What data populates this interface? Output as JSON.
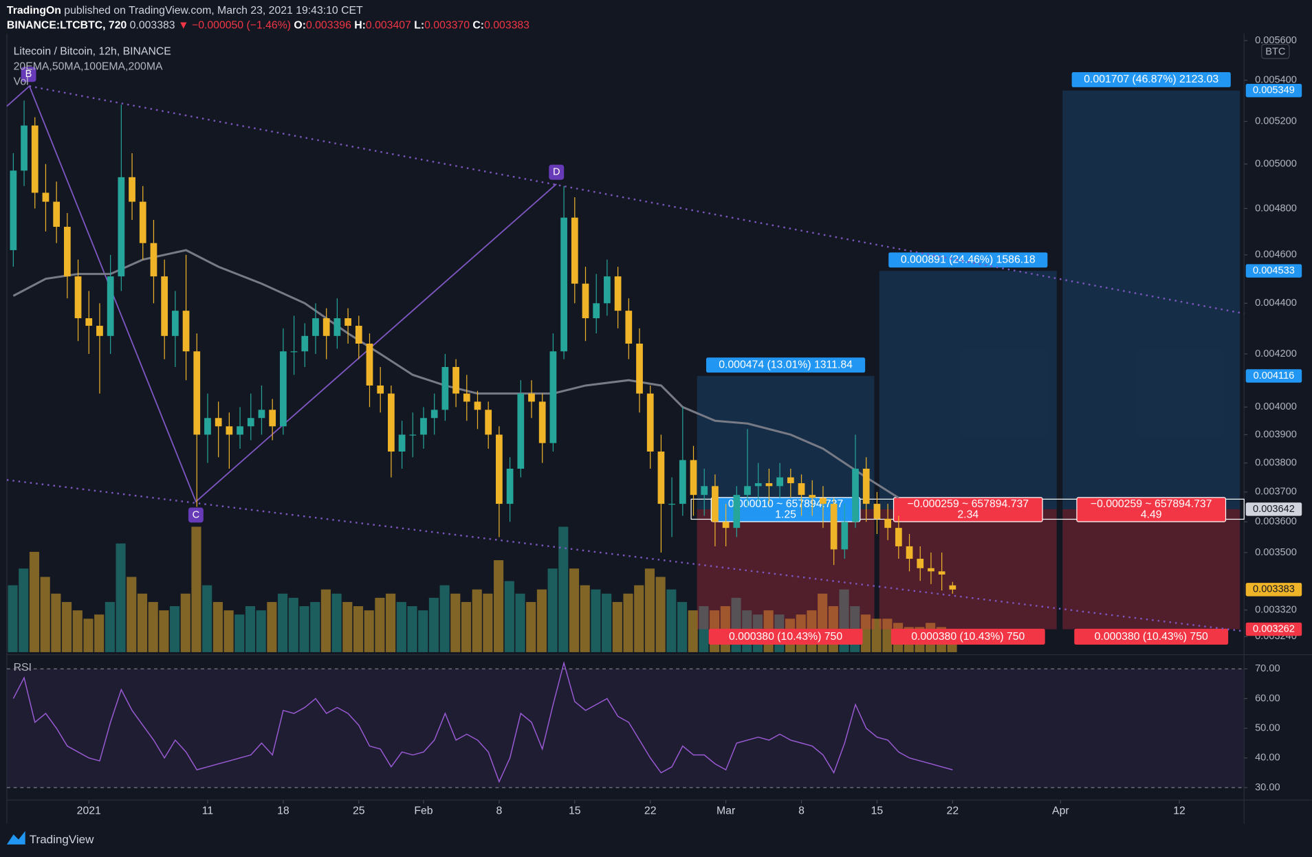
{
  "header": {
    "publisher": "TradingOn",
    "published": "published on TradingView.com, March 23, 2021 19:43:10 CET",
    "symbol": "BINANCE:LTCBTC, 720",
    "last": "0.003383",
    "change": "▼ −0.000050 (−1.46%)",
    "o_label": "O:",
    "open": "0.003396",
    "h_label": "H:",
    "high": "0.003407",
    "l_label": "L:",
    "low": "0.003370",
    "c_label": "C:",
    "close": "0.003383"
  },
  "footer": "TradingView",
  "chart_data": {
    "type": "candlestick",
    "title": "Litecoin / Bitcoin, 12h, BINANCE",
    "indicators_label": "20EMA,50MA,100EMA,200MA",
    "volume_label": "Vol",
    "currency": "BTC",
    "log_scale": true,
    "grid": false,
    "xlim": [
      -7.6,
      107
    ],
    "xticks": [
      {
        "value": 0,
        "label": "2021"
      },
      11,
      18,
      25,
      {
        "value": 31,
        "label": "Feb"
      },
      {
        "value": 38,
        "label": "8"
      },
      {
        "value": 45,
        "label": "15"
      },
      {
        "value": 52,
        "label": "22"
      },
      {
        "value": 59,
        "label": "Mar"
      },
      {
        "value": 66,
        "label": "8"
      },
      {
        "value": 73,
        "label": "15"
      },
      {
        "value": 80,
        "label": "22"
      },
      {
        "value": 90,
        "label": "Apr"
      },
      {
        "value": 101,
        "label": "12"
      }
    ],
    "ylim": [
      0.003194,
      0.005637
    ],
    "yticks": [
      {
        "value": 0.0056,
        "label": "0.005600"
      },
      {
        "value": 0.0054,
        "label": "0.005400"
      },
      {
        "value": 0.0052,
        "label": "0.005200"
      },
      {
        "value": 0.005,
        "label": "0.005000"
      },
      {
        "value": 0.0048,
        "label": "0.004800"
      },
      {
        "value": 0.0046,
        "label": "0.004600"
      },
      {
        "value": 0.0044,
        "label": "0.004400"
      },
      {
        "value": 0.0042,
        "label": "0.004200"
      },
      {
        "value": 0.004,
        "label": "0.004000"
      },
      {
        "value": 0.0039,
        "label": "0.003900"
      },
      {
        "value": 0.0038,
        "label": "0.003800"
      },
      {
        "value": 0.0037,
        "label": "0.003700"
      },
      {
        "value": 0.0036,
        "label": "0.003600"
      },
      {
        "value": 0.0035,
        "label": "0.003500"
      },
      {
        "value": 0.00332,
        "label": "0.003320"
      },
      {
        "value": 0.00324,
        "label": "0.003240"
      }
    ],
    "candles": {
      "up_color": "#26a69a",
      "down_color": "#f0b429",
      "x": [
        -7,
        -6,
        -5,
        -4,
        -3,
        -2,
        -1,
        0,
        1,
        2,
        3,
        4,
        5,
        6,
        7,
        8,
        9,
        10,
        11,
        12,
        13,
        14,
        15,
        16,
        17,
        18,
        19,
        20,
        21,
        22,
        23,
        24,
        25,
        26,
        27,
        28,
        29,
        30,
        31,
        32,
        33,
        34,
        35,
        36,
        37,
        38,
        39,
        40,
        41,
        42,
        43,
        44,
        45,
        46,
        47,
        48,
        49,
        50,
        51,
        52,
        53,
        54,
        55,
        56,
        57,
        58,
        59,
        60,
        61,
        62,
        63,
        64,
        65,
        66,
        67,
        68,
        69,
        70,
        71,
        72,
        73,
        74,
        75,
        76,
        77,
        78,
        79,
        80
      ],
      "ohlc": [
        [
          0.00462,
          0.00505,
          0.00455,
          0.00497
        ],
        [
          0.00497,
          0.0053,
          0.0049,
          0.00518
        ],
        [
          0.00518,
          0.00522,
          0.0048,
          0.00487
        ],
        [
          0.00487,
          0.005,
          0.0047,
          0.00483
        ],
        [
          0.00483,
          0.00492,
          0.00465,
          0.00472
        ],
        [
          0.00472,
          0.00478,
          0.00442,
          0.00451
        ],
        [
          0.00451,
          0.00458,
          0.00425,
          0.00434
        ],
        [
          0.00434,
          0.00445,
          0.0042,
          0.00431
        ],
        [
          0.00431,
          0.0044,
          0.00405,
          0.00427
        ],
        [
          0.00427,
          0.0046,
          0.0042,
          0.00451
        ],
        [
          0.00451,
          0.00528,
          0.00445,
          0.00494
        ],
        [
          0.00494,
          0.00505,
          0.00475,
          0.00483
        ],
        [
          0.00483,
          0.0049,
          0.00458,
          0.00465
        ],
        [
          0.00465,
          0.00475,
          0.0044,
          0.00451
        ],
        [
          0.00451,
          0.00458,
          0.00418,
          0.00427
        ],
        [
          0.00427,
          0.00445,
          0.00415,
          0.00437
        ],
        [
          0.00437,
          0.0046,
          0.0041,
          0.00421
        ],
        [
          0.00421,
          0.00428,
          0.00365,
          0.0039
        ],
        [
          0.0039,
          0.00405,
          0.0038,
          0.00396
        ],
        [
          0.00396,
          0.00402,
          0.00382,
          0.00393
        ],
        [
          0.00393,
          0.00398,
          0.00378,
          0.0039
        ],
        [
          0.0039,
          0.004,
          0.00385,
          0.00393
        ],
        [
          0.00393,
          0.00405,
          0.00388,
          0.00396
        ],
        [
          0.00396,
          0.00408,
          0.0039,
          0.00399
        ],
        [
          0.00399,
          0.00403,
          0.00388,
          0.00393
        ],
        [
          0.00393,
          0.0043,
          0.0039,
          0.00421
        ],
        [
          0.00421,
          0.00435,
          0.00412,
          0.00421
        ],
        [
          0.00421,
          0.00432,
          0.00415,
          0.00427
        ],
        [
          0.00427,
          0.0044,
          0.0042,
          0.00434
        ],
        [
          0.00434,
          0.00438,
          0.00418,
          0.00427
        ],
        [
          0.00427,
          0.00442,
          0.00422,
          0.00434
        ],
        [
          0.00434,
          0.00438,
          0.00424,
          0.00431
        ],
        [
          0.00431,
          0.00435,
          0.00418,
          0.00424
        ],
        [
          0.00424,
          0.00428,
          0.004,
          0.00408
        ],
        [
          0.00408,
          0.00415,
          0.00398,
          0.00405
        ],
        [
          0.00405,
          0.00408,
          0.00375,
          0.00384
        ],
        [
          0.00384,
          0.00395,
          0.00378,
          0.0039
        ],
        [
          0.0039,
          0.00398,
          0.00382,
          0.0039
        ],
        [
          0.0039,
          0.004,
          0.00385,
          0.00396
        ],
        [
          0.00396,
          0.00405,
          0.0039,
          0.00399
        ],
        [
          0.00399,
          0.0042,
          0.00395,
          0.00415
        ],
        [
          0.00415,
          0.00418,
          0.004,
          0.00405
        ],
        [
          0.00405,
          0.00412,
          0.00395,
          0.00402
        ],
        [
          0.00402,
          0.00406,
          0.00392,
          0.00399
        ],
        [
          0.00399,
          0.00402,
          0.00385,
          0.0039
        ],
        [
          0.0039,
          0.00393,
          0.00355,
          0.00366
        ],
        [
          0.00366,
          0.00382,
          0.0036,
          0.00378
        ],
        [
          0.00378,
          0.0041,
          0.00375,
          0.00405
        ],
        [
          0.00405,
          0.0041,
          0.00396,
          0.00402
        ],
        [
          0.00402,
          0.00405,
          0.0038,
          0.00387
        ],
        [
          0.00387,
          0.00428,
          0.00384,
          0.00421
        ],
        [
          0.00421,
          0.0049,
          0.00418,
          0.00476
        ],
        [
          0.00476,
          0.00485,
          0.0044,
          0.00448
        ],
        [
          0.00448,
          0.00455,
          0.00425,
          0.00434
        ],
        [
          0.00434,
          0.00452,
          0.00428,
          0.0044
        ],
        [
          0.0044,
          0.00458,
          0.00435,
          0.00451
        ],
        [
          0.00451,
          0.00455,
          0.0043,
          0.00437
        ],
        [
          0.00437,
          0.00442,
          0.00418,
          0.00424
        ],
        [
          0.00424,
          0.0043,
          0.00398,
          0.00405
        ],
        [
          0.00405,
          0.00408,
          0.00378,
          0.00384
        ],
        [
          0.00384,
          0.0039,
          0.0035,
          0.00366
        ],
        [
          0.00366,
          0.00375,
          0.00355,
          0.00366
        ],
        [
          0.00366,
          0.004,
          0.00362,
          0.00381
        ],
        [
          0.00381,
          0.00386,
          0.00362,
          0.00369
        ],
        [
          0.00369,
          0.00378,
          0.00362,
          0.00372
        ],
        [
          0.00372,
          0.00376,
          0.00352,
          0.0036
        ],
        [
          0.0036,
          0.00366,
          0.00352,
          0.00358
        ],
        [
          0.00358,
          0.00372,
          0.00355,
          0.00369
        ],
        [
          0.00369,
          0.00392,
          0.00365,
          0.00372
        ],
        [
          0.00372,
          0.0038,
          0.00366,
          0.00373
        ],
        [
          0.00373,
          0.00378,
          0.00366,
          0.00372
        ],
        [
          0.00372,
          0.0038,
          0.00368,
          0.00375
        ],
        [
          0.00375,
          0.00378,
          0.00368,
          0.00373
        ],
        [
          0.00373,
          0.00376,
          0.00362,
          0.00369
        ],
        [
          0.00369,
          0.00374,
          0.00362,
          0.00368
        ],
        [
          0.00368,
          0.00372,
          0.00358,
          0.00366
        ],
        [
          0.00366,
          0.00368,
          0.00346,
          0.00351
        ],
        [
          0.00351,
          0.00366,
          0.00348,
          0.0036
        ],
        [
          0.0036,
          0.0039,
          0.00358,
          0.00378
        ],
        [
          0.00378,
          0.00382,
          0.0036,
          0.00366
        ],
        [
          0.00366,
          0.0037,
          0.00356,
          0.00361
        ],
        [
          0.00361,
          0.00366,
          0.00354,
          0.00358
        ],
        [
          0.00358,
          0.00362,
          0.00348,
          0.00352
        ],
        [
          0.00352,
          0.00356,
          0.00344,
          0.00348
        ],
        [
          0.00348,
          0.00352,
          0.00341,
          0.00345
        ],
        [
          0.00345,
          0.0035,
          0.0034,
          0.00344
        ],
        [
          0.00344,
          0.0035,
          0.00338,
          0.00343
        ],
        [
          0.003396,
          0.003407,
          0.00337,
          0.003383
        ]
      ]
    },
    "volume": {
      "values": [
        80,
        100,
        120,
        90,
        70,
        60,
        50,
        40,
        45,
        60,
        130,
        90,
        70,
        60,
        50,
        55,
        70,
        150,
        80,
        60,
        50,
        45,
        55,
        50,
        60,
        70,
        65,
        55,
        60,
        75,
        70,
        60,
        55,
        50,
        65,
        70,
        60,
        55,
        50,
        65,
        80,
        70,
        60,
        75,
        70,
        110,
        85,
        70,
        60,
        75,
        100,
        150,
        100,
        80,
        75,
        70,
        60,
        70,
        80,
        100,
        90,
        75,
        60,
        50,
        55,
        50,
        55,
        65,
        50,
        45,
        50,
        45,
        40,
        45,
        50,
        70,
        55,
        75,
        55,
        45,
        40,
        40,
        35,
        30,
        30,
        35,
        30,
        25
      ]
    },
    "ma": {
      "color": "#787b86",
      "x": [
        -7,
        -4,
        -1,
        2,
        5,
        9,
        12,
        16,
        20,
        24,
        27,
        30,
        33,
        36,
        40,
        43,
        46,
        50,
        53,
        55,
        58,
        61,
        65,
        68,
        72,
        75
      ],
      "values": [
        0.00443,
        0.0045,
        0.00452,
        0.00452,
        0.00458,
        0.00462,
        0.00455,
        0.00448,
        0.0044,
        0.00428,
        0.0042,
        0.00412,
        0.00408,
        0.00405,
        0.00405,
        0.00405,
        0.00408,
        0.0041,
        0.00408,
        0.004,
        0.00395,
        0.00394,
        0.0039,
        0.00385,
        0.00375,
        0.00368
      ]
    },
    "rsi": {
      "label": "RSI",
      "color": "#9c5bd6",
      "ylim": [
        26.34,
        73.66
      ],
      "yticks": [
        {
          "value": 70,
          "label": "70.00"
        },
        {
          "value": 60,
          "label": "60.00"
        },
        {
          "value": 50,
          "label": "50.00"
        },
        {
          "value": 40,
          "label": "40.00"
        },
        {
          "value": 30,
          "label": "30.00"
        }
      ],
      "values": [
        60,
        67,
        52,
        55,
        50,
        44,
        42,
        40,
        39,
        52,
        63,
        56,
        51,
        46,
        40,
        46,
        42,
        36,
        37,
        38,
        39,
        40,
        41,
        45,
        41,
        56,
        55,
        57,
        60,
        55,
        57,
        55,
        51,
        44,
        43,
        37,
        42,
        41,
        42,
        46,
        55,
        46,
        48,
        46,
        42,
        32,
        40,
        55,
        52,
        43,
        58,
        72,
        59,
        56,
        58,
        60,
        54,
        52,
        46,
        40,
        35,
        37,
        44,
        41,
        41,
        38,
        36,
        45,
        46,
        47,
        46,
        48,
        46,
        45,
        44,
        41,
        35,
        45,
        58,
        50,
        47,
        46,
        42,
        40,
        39,
        38,
        37,
        36
      ]
    },
    "price_labels": {
      "values": [
        0.005349,
        0.004533,
        0.004116,
        0.003642,
        0.003383,
        0.003262
      ],
      "colors": [
        "#2196f3",
        "#2196f3",
        "#2196f3",
        "#d1d4dc",
        "#f0b429",
        "#f23645"
      ],
      "text_colors": [
        "#ffffff",
        "#ffffff",
        "#ffffff",
        "#131722",
        "#131722",
        "#ffffff"
      ]
    },
    "positions": [
      {
        "target_label": "0.000474 (13.01%) 1311.84",
        "entry_label": "0.000010 ~ 657894.737",
        "ratio": 1.25,
        "stop_label": "0.000380 (10.43%) 750"
      },
      {
        "target_label": "0.000891 (24.46%) 1586.18",
        "entry_label": "−0.000259 ~ 657894.737",
        "ratio": 2.34,
        "stop_label": "0.000380 (10.43%) 750"
      },
      {
        "target_label": "0.001707 (46.87%) 2123.03",
        "entry_label": "−0.000259 ~ 657894.737",
        "ratio": 4.49,
        "stop_label": "0.000380 (10.43%) 750"
      }
    ],
    "pattern_points": [
      "B",
      "C",
      "D"
    ]
  }
}
